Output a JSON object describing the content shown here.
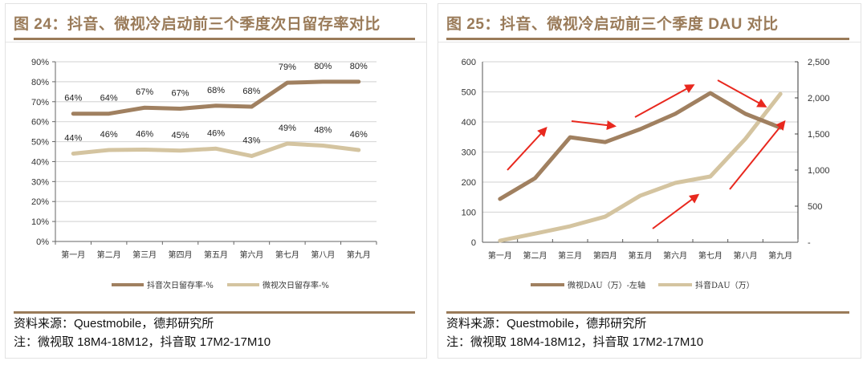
{
  "colors": {
    "accent": "#9a7b59",
    "series_dark": "#a08060",
    "series_light": "#d4c4a0",
    "arrow": "#e8281e",
    "grid": "#d9d9d9"
  },
  "left_panel": {
    "title": "图 24：抖音、微视冷启动前三个季度次日留存率对比",
    "source": "资料来源：Questmobile，德邦研究所",
    "note": ""
  },
  "right_panel": {
    "title": "图 25：抖音、微视冷启动前三个季度 DAU 对比",
    "source": "资料来源：Questmobile，德邦研究所",
    "note": "注：微视取 18M4-18M12，抖音取 17M2-17M10"
  },
  "chart_data": [
    {
      "type": "line",
      "title": "抖音、微视冷启动前三个季度次日留存率对比",
      "categories": [
        "第一月",
        "第二月",
        "第三月",
        "第四月",
        "第五月",
        "第六月",
        "第七月",
        "第八月",
        "第九月"
      ],
      "series": [
        {
          "name": "抖音次日留存率-%",
          "values": [
            64,
            64,
            67,
            67,
            68,
            68,
            79,
            80,
            80
          ],
          "plot_values": [
            64,
            64,
            67,
            66.5,
            68,
            67.5,
            79.5,
            80,
            80
          ],
          "labels": [
            "64%",
            "64%",
            "67%",
            "67%",
            "68%",
            "68%",
            "79%",
            "80%",
            "80%"
          ],
          "color": "#a08060"
        },
        {
          "name": "微视次日留存率-%",
          "values": [
            44,
            46,
            46,
            45,
            46,
            43,
            49,
            48,
            46
          ],
          "plot_values": [
            44,
            45.8,
            46,
            45.5,
            46.5,
            42.8,
            49,
            48,
            45.8
          ],
          "labels": [
            "44%",
            "46%",
            "46%",
            "45%",
            "46%",
            "43%",
            "49%",
            "48%",
            "46%"
          ],
          "color": "#d4c4a0"
        }
      ],
      "y_ticks": [
        "0%",
        "10%",
        "20%",
        "30%",
        "40%",
        "50%",
        "60%",
        "70%",
        "80%",
        "90%"
      ],
      "ylim": [
        0,
        90
      ],
      "xlabel": "",
      "ylabel": "",
      "grid": true,
      "legend": "bottom"
    },
    {
      "type": "line",
      "title": "抖音、微视冷启动前三个季度 DAU 对比",
      "categories": [
        "第一月",
        "第二月",
        "第三月",
        "第四月",
        "第五月",
        "第六月",
        "第七月",
        "第八月",
        "第九月"
      ],
      "series": [
        {
          "name": "微视DAU（万）-左轴",
          "axis": "left",
          "values": [
            144,
            213,
            349,
            333,
            376,
            427,
            496,
            427,
            381
          ],
          "color": "#a08060"
        },
        {
          "name": "抖音DAU（万）",
          "axis": "right",
          "values": [
            22,
            120,
            222,
            355,
            645,
            822,
            911,
            1433,
            2055
          ],
          "color": "#d4c4a0"
        }
      ],
      "y_left_ticks": [
        "0",
        "100",
        "200",
        "300",
        "400",
        "500",
        "600"
      ],
      "ylim_left": [
        0,
        600
      ],
      "y_right_ticks": [
        "-",
        "500",
        "1,000",
        "1,500",
        "2,000",
        "2,500"
      ],
      "ylim_right": [
        0,
        2500
      ],
      "grid": true,
      "legend": "bottom",
      "annotations": "red trend arrows along both series"
    }
  ]
}
